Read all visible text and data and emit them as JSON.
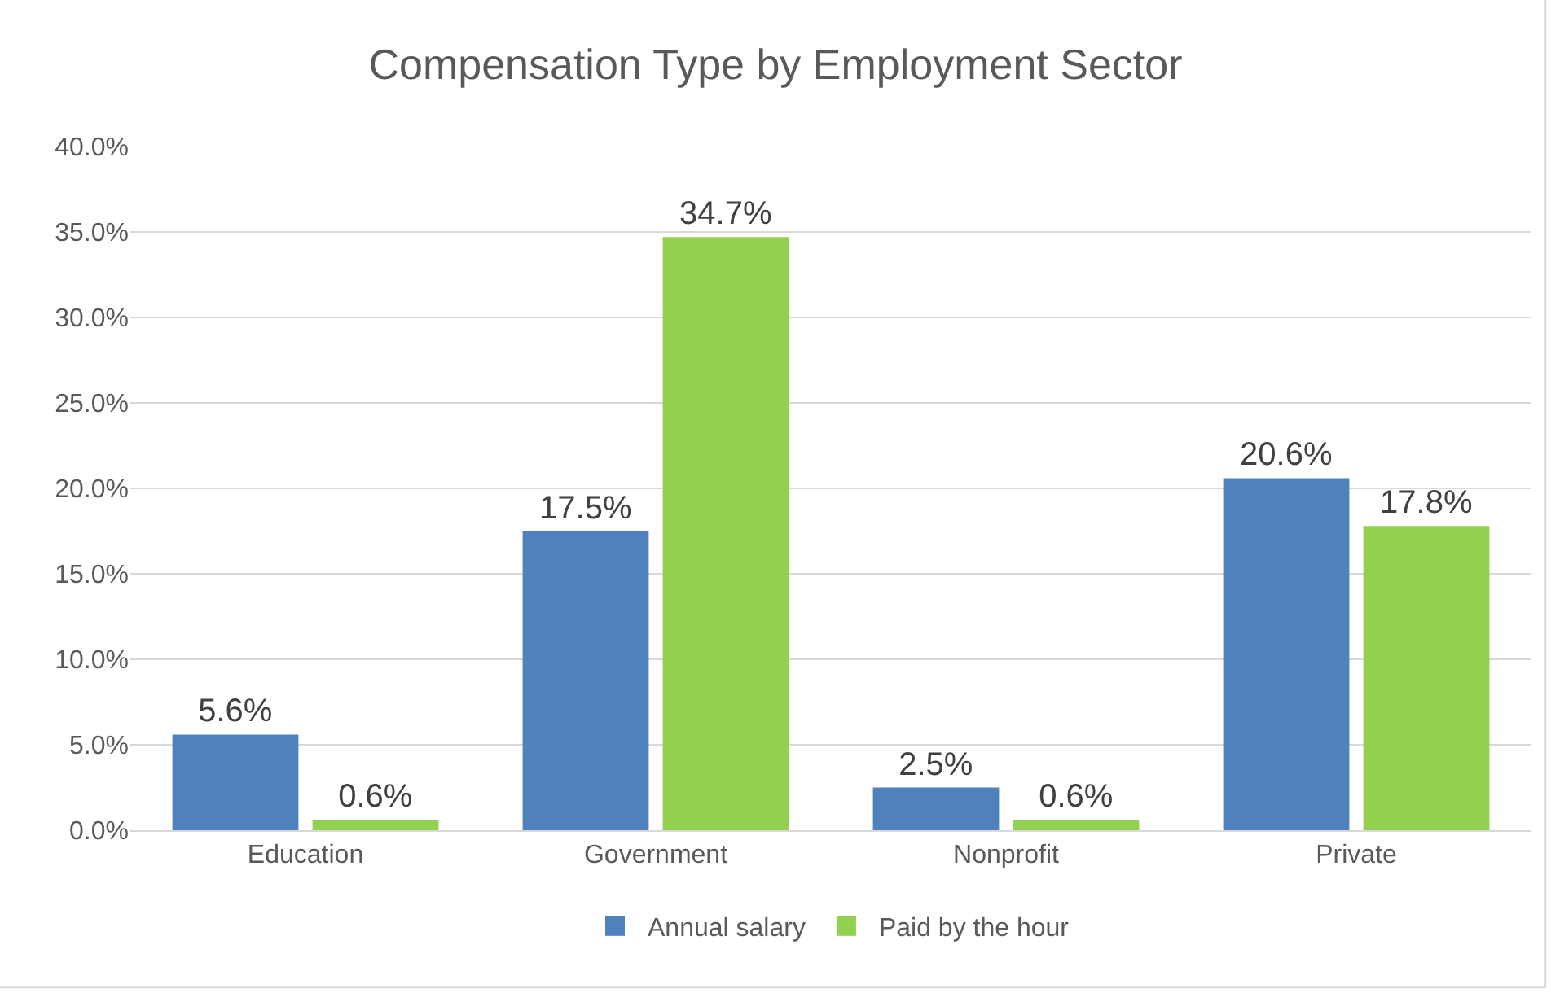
{
  "chart_data": {
    "type": "bar",
    "title": "Compensation Type by Employment Sector",
    "categories": [
      "Education",
      "Government",
      "Nonprofit",
      "Private"
    ],
    "series": [
      {
        "name": "Annual salary",
        "color": "#4f81bd",
        "values": [
          5.6,
          17.5,
          2.5,
          20.6
        ],
        "value_labels": [
          "5.6%",
          "17.5%",
          "2.5%",
          "20.6%"
        ]
      },
      {
        "name": "Paid by the hour",
        "color": "#92d050",
        "values": [
          0.6,
          34.7,
          0.6,
          17.8
        ],
        "value_labels": [
          "0.6%",
          "34.7%",
          "0.6%",
          "17.8%"
        ]
      }
    ],
    "ylim": [
      0,
      40
    ],
    "yticks": [
      {
        "value": 0,
        "label": "0.0%"
      },
      {
        "value": 5,
        "label": "5.0%"
      },
      {
        "value": 10,
        "label": "10.0%"
      },
      {
        "value": 15,
        "label": "15.0%"
      },
      {
        "value": 20,
        "label": "20.0%"
      },
      {
        "value": 25,
        "label": "25.0%"
      },
      {
        "value": 30,
        "label": "30.0%"
      },
      {
        "value": 35,
        "label": "35.0%"
      },
      {
        "value": 40,
        "label": "40.0%"
      }
    ],
    "grid": "y",
    "legend": "bottom"
  }
}
